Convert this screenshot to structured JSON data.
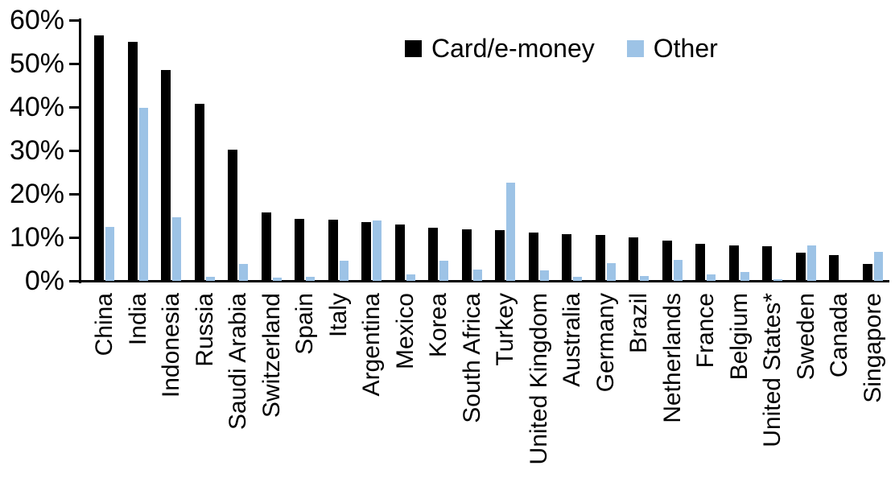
{
  "chart_data": {
    "type": "bar",
    "title": "",
    "xlabel": "",
    "ylabel": "",
    "ylim": [
      0,
      60
    ],
    "y_tick_step": 10,
    "y_tick_labels": [
      "0%",
      "10%",
      "20%",
      "30%",
      "40%",
      "50%",
      "60%"
    ],
    "grid": false,
    "legend_position": "top-center",
    "categories": [
      "China",
      "India",
      "Indonesia",
      "Russia",
      "Saudi Arabia",
      "Switzerland",
      "Spain",
      "Italy",
      "Argentina",
      "Mexico",
      "Korea",
      "South Africa",
      "Turkey",
      "United Kingdom",
      "Australia",
      "Germany",
      "Brazil",
      "Netherlands",
      "France",
      "Belgium",
      "United States*",
      "Sweden",
      "Canada",
      "Singapore"
    ],
    "series": [
      {
        "name": "Card/e-money",
        "color": "#000000",
        "values": [
          56.5,
          55.0,
          48.5,
          40.8,
          30.1,
          15.7,
          14.2,
          14.1,
          13.5,
          13.0,
          12.3,
          11.8,
          11.7,
          11.1,
          10.8,
          10.6,
          10.0,
          9.3,
          8.6,
          8.1,
          8.0,
          6.5,
          6.0,
          3.9
        ],
        "swatch_icon": "black-square-icon"
      },
      {
        "name": "Other",
        "color": "#9DC3E6",
        "values": [
          12.4,
          39.8,
          14.6,
          1.0,
          3.9,
          0.8,
          1.0,
          4.7,
          13.9,
          1.5,
          4.6,
          2.5,
          22.6,
          2.4,
          1.0,
          4.0,
          1.2,
          4.8,
          1.5,
          2.1,
          0.3,
          8.1,
          0.0,
          6.7
        ],
        "swatch_icon": "blue-square-icon"
      }
    ]
  }
}
